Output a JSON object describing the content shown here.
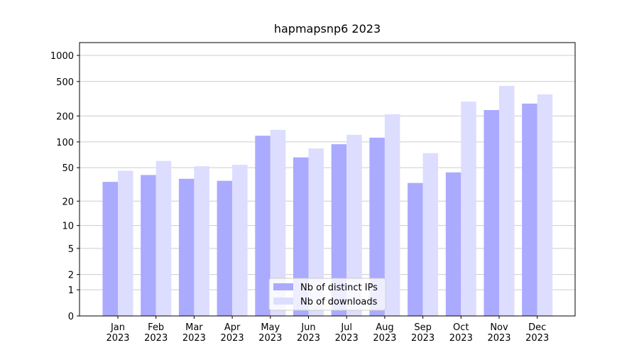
{
  "chart_data": {
    "type": "bar",
    "title": "hapmapsnp6 2023",
    "categories": [
      "Jan\n2023",
      "Feb\n2023",
      "Mar\n2023",
      "Apr\n2023",
      "May\n2023",
      "Jun\n2023",
      "Jul\n2023",
      "Aug\n2023",
      "Sep\n2023",
      "Oct\n2023",
      "Nov\n2023",
      "Dec\n2023"
    ],
    "series": [
      {
        "name": "Nb of distinct IPs",
        "color": "#aaaaff",
        "values": [
          34,
          41,
          37,
          35,
          118,
          66,
          94,
          112,
          33,
          44,
          234,
          278
        ]
      },
      {
        "name": "Nb of downloads",
        "color": "#ddddff",
        "values": [
          46,
          60,
          52,
          54,
          138,
          84,
          121,
          209,
          74,
          293,
          445,
          355
        ]
      }
    ],
    "yscale": "log1p",
    "ylim": [
      0,
      1405
    ],
    "yticks": [
      0,
      1,
      2,
      5,
      10,
      20,
      50,
      100,
      200,
      500,
      1000
    ],
    "grid": true,
    "legend": "lower center"
  }
}
